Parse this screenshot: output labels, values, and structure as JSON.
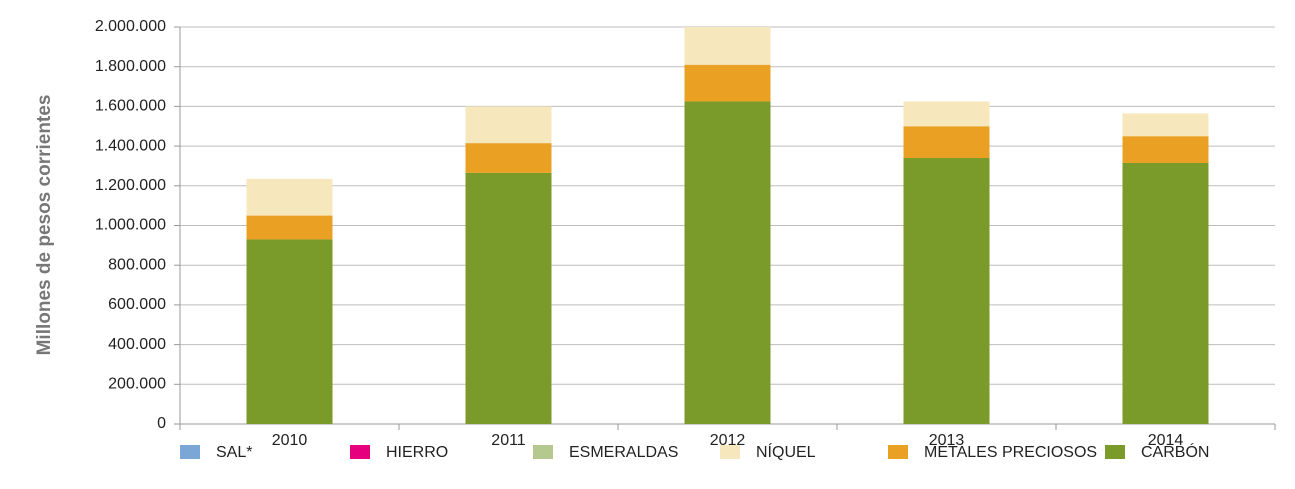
{
  "chart_data": {
    "type": "stacked_bar",
    "y_label": "Millones de pesos corrientes",
    "categories": [
      "2010",
      "2011",
      "2012",
      "2013",
      "2014"
    ],
    "series": [
      {
        "name": "SAL*",
        "color": "#7ba7d7",
        "values": [
          0,
          0,
          0,
          0,
          0
        ]
      },
      {
        "name": "HIERRO",
        "color": "#e6007e",
        "values": [
          0,
          0,
          0,
          0,
          0
        ]
      },
      {
        "name": "ESMERALDAS",
        "color": "#b5c98e",
        "values": [
          0,
          0,
          0,
          0,
          0
        ]
      },
      {
        "name": "NÍQUEL",
        "color": "#f7e7bd",
        "values": [
          185000,
          185000,
          190000,
          125000,
          115000
        ]
      },
      {
        "name": "METALES PRECIOSOS",
        "color": "#e9a023",
        "values": [
          120000,
          150000,
          185000,
          160000,
          135000
        ]
      },
      {
        "name": "CARBÓN",
        "color": "#7a9a2a",
        "values": [
          930000,
          1265000,
          1625000,
          1340000,
          1315000
        ]
      }
    ],
    "ylim": [
      0,
      2000000
    ],
    "yticks": [
      0,
      {
        "value": 200000,
        "label": "200.000"
      },
      {
        "value": 400000,
        "label": "400.000"
      },
      {
        "value": 600000,
        "label": "600.000"
      },
      {
        "value": 800000,
        "label": "800.000"
      },
      {
        "value": 1000000,
        "label": "1.000.000"
      },
      {
        "value": 1200000,
        "label": "1.200.000"
      },
      {
        "value": 1400000,
        "label": "1.400.000"
      },
      {
        "value": 1600000,
        "label": "1.600.000"
      },
      {
        "value": 1800000,
        "label": "1.800.000"
      },
      {
        "value": 2000000,
        "label": "2.000.000"
      }
    ],
    "grid": true,
    "legend": "bottom"
  }
}
